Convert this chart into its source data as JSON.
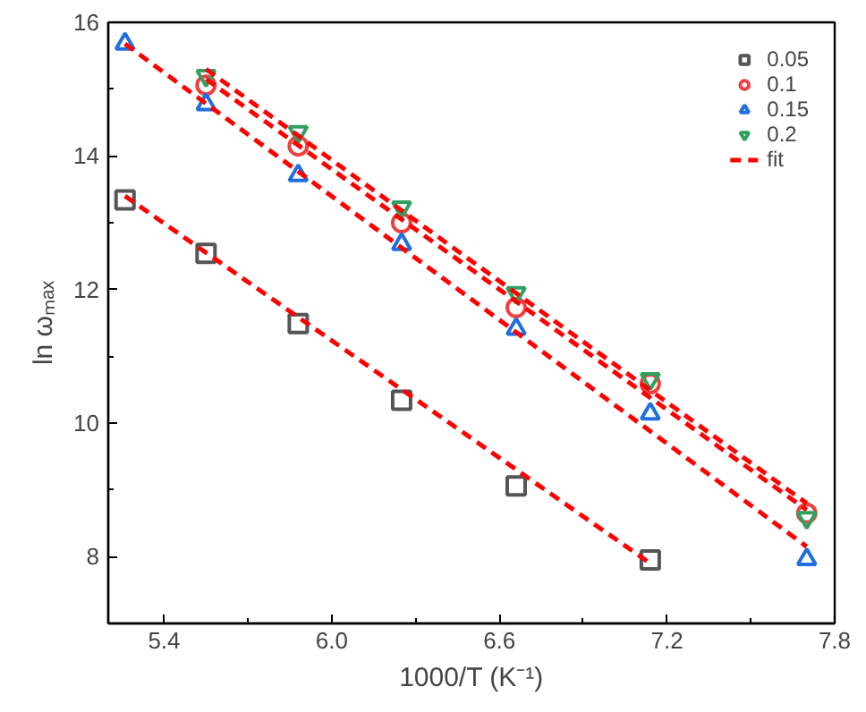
{
  "chart_data": {
    "type": "scatter",
    "xlabel": "1000/T (K⁻¹)",
    "ylabel": "ln ωₘₐₓ",
    "xlim": [
      5.2,
      7.8
    ],
    "ylim": [
      7,
      16
    ],
    "xticks": [
      5.4,
      {
        "value": 6.0,
        "label": "6.0"
      },
      6.6,
      7.2,
      7.8
    ],
    "yticks": [
      8,
      10,
      12,
      14,
      16
    ],
    "grid": false,
    "legend": "top right",
    "series": [
      {
        "name": "0.05",
        "color": "#555555",
        "marker": "square",
        "x": [
          5.26,
          5.55,
          5.88,
          6.25,
          6.66,
          7.14
        ],
        "values": [
          13.34,
          12.54,
          11.49,
          10.34,
          9.06,
          7.95
        ]
      },
      {
        "name": "0.1",
        "color": "#f04040",
        "marker": "circle",
        "x": [
          5.55,
          5.88,
          6.25,
          6.66,
          7.14,
          7.7
        ],
        "values": [
          15.06,
          14.15,
          13.0,
          11.73,
          10.59,
          8.65
        ]
      },
      {
        "name": "0.15",
        "color": "#1f6fe0",
        "marker": "triangle",
        "x": [
          5.26,
          5.55,
          5.88,
          6.25,
          6.66,
          7.14,
          7.7
        ],
        "values": [
          15.68,
          14.77,
          13.71,
          12.68,
          11.41,
          10.14,
          7.96
        ]
      },
      {
        "name": "0.2",
        "color": "#30a060",
        "x": [
          5.55,
          5.88,
          6.25,
          6.66,
          7.14,
          7.7
        ],
        "values": [
          15.2,
          14.36,
          13.23,
          11.95,
          10.66,
          8.58
        ]
      },
      {
        "name": "fit",
        "type": "line",
        "line_style": "dashed",
        "color": "#ff0000",
        "x": [
          5.26,
          7.14
        ],
        "values": [
          13.4,
          7.9
        ]
      },
      {
        "type": "line",
        "line_style": "dashed",
        "color": "#ff0000",
        "x": [
          5.55,
          7.7
        ],
        "values": [
          15.15,
          8.7
        ]
      },
      {
        "type": "line",
        "line_style": "dashed",
        "color": "#ff0000",
        "x": [
          5.26,
          7.7
        ],
        "values": [
          15.68,
          8.15
        ]
      },
      {
        "type": "line",
        "line_style": "dashed",
        "color": "#ff0000",
        "x": [
          5.55,
          7.7
        ],
        "values": [
          15.3,
          8.8
        ]
      }
    ]
  }
}
